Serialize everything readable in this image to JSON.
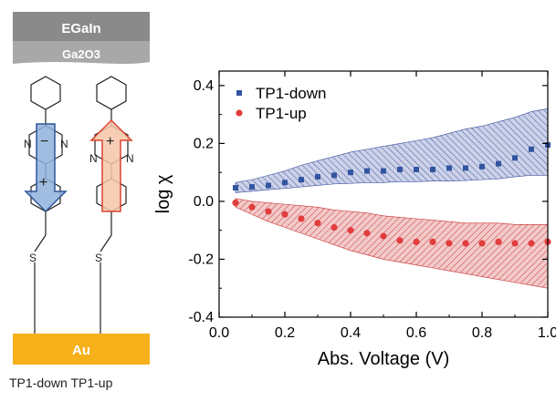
{
  "schematic": {
    "top_electrode_label": "EGaIn",
    "oxide_label": "Ga2O3",
    "bottom_electrode_label": "Au",
    "molecule_labels": [
      "TP1-down",
      "TP1-up"
    ],
    "ring_atoms": {
      "nitrogen": "N",
      "sulfur": "S"
    },
    "dipole_signs": {
      "positive": "+",
      "negative": "−"
    },
    "colors": {
      "egain": "#8a8a8a",
      "oxide": "#a8a8a8",
      "gold": "#f5b01a",
      "dipole_down_fill": "#8fb0dc",
      "dipole_down_edge": "#2f5597",
      "dipole_up_fill": "#f6c6a8",
      "dipole_up_edge": "#d9432f"
    }
  },
  "chart_data": {
    "type": "scatter",
    "xlabel": "Abs. Voltage (V)",
    "ylabel": "log χ",
    "xlim": [
      0.0,
      1.0
    ],
    "ylim": [
      -0.4,
      0.45
    ],
    "xticks": [
      "0.0",
      "0.2",
      "0.4",
      "0.6",
      "0.8",
      "1.0"
    ],
    "yticks": [
      "-0.4",
      "-0.2",
      "0.0",
      "0.2",
      "0.4"
    ],
    "grid": false,
    "legend": "top-left",
    "series": [
      {
        "name": "TP1-down",
        "marker": "square",
        "color": "#3355a0",
        "band_color": "#3a4e9e",
        "x": [
          0.05,
          0.1,
          0.15,
          0.2,
          0.25,
          0.3,
          0.35,
          0.4,
          0.45,
          0.5,
          0.55,
          0.6,
          0.65,
          0.7,
          0.75,
          0.8,
          0.85,
          0.9,
          0.95,
          1.0
        ],
        "y": [
          0.047,
          0.05,
          0.055,
          0.065,
          0.075,
          0.085,
          0.09,
          0.1,
          0.105,
          0.105,
          0.11,
          0.11,
          0.11,
          0.115,
          0.115,
          0.12,
          0.13,
          0.15,
          0.18,
          0.195
        ],
        "band_lower": [
          0.03,
          0.035,
          0.04,
          0.045,
          0.05,
          0.055,
          0.06,
          0.062,
          0.065,
          0.065,
          0.068,
          0.068,
          0.07,
          0.07,
          0.072,
          0.075,
          0.078,
          0.085,
          0.09,
          0.09
        ],
        "band_upper": [
          0.065,
          0.075,
          0.09,
          0.105,
          0.125,
          0.14,
          0.155,
          0.17,
          0.18,
          0.19,
          0.2,
          0.21,
          0.22,
          0.235,
          0.25,
          0.26,
          0.275,
          0.29,
          0.31,
          0.32
        ]
      },
      {
        "name": "TP1-up",
        "marker": "circle",
        "color": "#e23d3d",
        "band_color": "#c83232",
        "x": [
          0.05,
          0.1,
          0.15,
          0.2,
          0.25,
          0.3,
          0.35,
          0.4,
          0.45,
          0.5,
          0.55,
          0.6,
          0.65,
          0.7,
          0.75,
          0.8,
          0.85,
          0.9,
          0.95,
          1.0
        ],
        "y": [
          -0.005,
          -0.02,
          -0.035,
          -0.045,
          -0.06,
          -0.075,
          -0.09,
          -0.1,
          -0.11,
          -0.12,
          -0.135,
          -0.14,
          -0.14,
          -0.145,
          -0.145,
          -0.145,
          -0.14,
          -0.145,
          -0.145,
          -0.14
        ],
        "band_lower": [
          -0.02,
          -0.045,
          -0.07,
          -0.09,
          -0.11,
          -0.13,
          -0.15,
          -0.17,
          -0.185,
          -0.2,
          -0.21,
          -0.22,
          -0.23,
          -0.24,
          -0.25,
          -0.26,
          -0.27,
          -0.28,
          -0.29,
          -0.3
        ],
        "band_upper": [
          0.01,
          0.0,
          -0.005,
          -0.01,
          -0.015,
          -0.02,
          -0.03,
          -0.035,
          -0.04,
          -0.05,
          -0.055,
          -0.06,
          -0.065,
          -0.07,
          -0.075,
          -0.075,
          -0.075,
          -0.08,
          -0.08,
          -0.08
        ]
      }
    ]
  }
}
